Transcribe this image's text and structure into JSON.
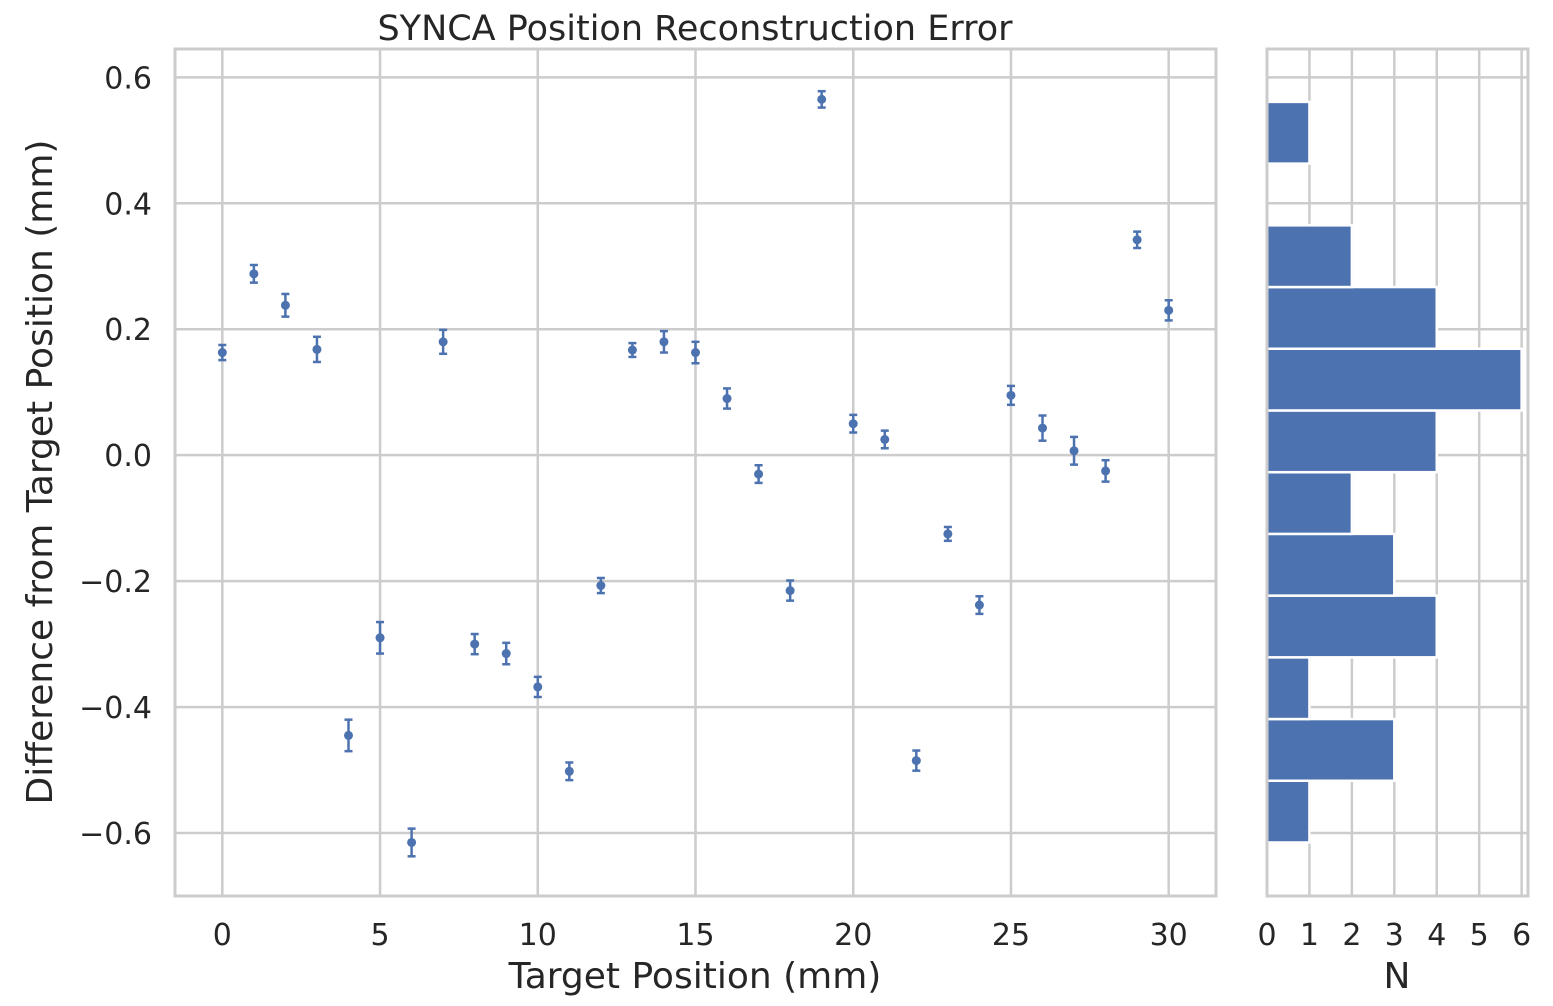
{
  "chart_data": [
    {
      "type": "scatter",
      "title": "SYNCA Position Reconstruction Error",
      "xlabel": "Target Position (mm)",
      "ylabel": "Difference from Target Position (mm)",
      "xlim": [
        -1.5,
        31.5
      ],
      "ylim": [
        -0.7,
        0.645
      ],
      "xticks": [
        "0",
        "5",
        "10",
        "15",
        "20",
        "25",
        "30"
      ],
      "xtick_values": [
        0,
        5,
        10,
        15,
        20,
        25,
        30
      ],
      "yticks": [
        "−0.6",
        "−0.4",
        "−0.2",
        "0.0",
        "0.2",
        "0.4",
        "0.6"
      ],
      "ytick_values": [
        -0.6,
        -0.4,
        -0.2,
        0.0,
        0.2,
        0.4,
        0.6
      ],
      "grid": true,
      "color": "#4c72b0",
      "x": [
        0,
        1,
        2,
        3,
        4,
        5,
        6,
        7,
        8,
        9,
        10,
        11,
        12,
        13,
        14,
        15,
        16,
        17,
        18,
        19,
        20,
        21,
        22,
        23,
        24,
        25,
        26,
        27,
        28,
        29,
        30
      ],
      "y": [
        0.163,
        0.288,
        0.238,
        0.168,
        -0.445,
        -0.29,
        -0.615,
        0.18,
        -0.3,
        -0.315,
        -0.368,
        -0.502,
        -0.207,
        0.167,
        0.18,
        0.163,
        0.09,
        -0.03,
        -0.215,
        0.565,
        0.05,
        0.025,
        -0.485,
        -0.125,
        -0.238,
        0.095,
        0.043,
        0.007,
        -0.025,
        0.342,
        0.23
      ],
      "yerr": [
        0.012,
        0.014,
        0.018,
        0.02,
        0.025,
        0.025,
        0.022,
        0.019,
        0.016,
        0.017,
        0.016,
        0.014,
        0.012,
        0.011,
        0.017,
        0.017,
        0.016,
        0.014,
        0.016,
        0.013,
        0.014,
        0.014,
        0.016,
        0.011,
        0.014,
        0.015,
        0.02,
        0.022,
        0.017,
        0.013,
        0.016
      ]
    },
    {
      "type": "bar",
      "orientation": "horizontal",
      "xlabel": "N",
      "ylabel": "",
      "xlim": [
        0,
        6.15
      ],
      "xticks": [
        "0",
        "1",
        "2",
        "3",
        "4",
        "5",
        "6"
      ],
      "xtick_values": [
        0,
        1,
        2,
        3,
        4,
        5,
        6
      ],
      "color": "#4c72b0",
      "bins": [
        -0.615,
        -0.517,
        -0.419,
        -0.321,
        -0.223,
        -0.125,
        -0.027,
        0.071,
        0.169,
        0.267,
        0.365,
        0.463,
        0.561
      ],
      "counts": [
        1,
        3,
        1,
        4,
        3,
        2,
        4,
        6,
        4,
        2,
        0,
        1
      ]
    }
  ]
}
